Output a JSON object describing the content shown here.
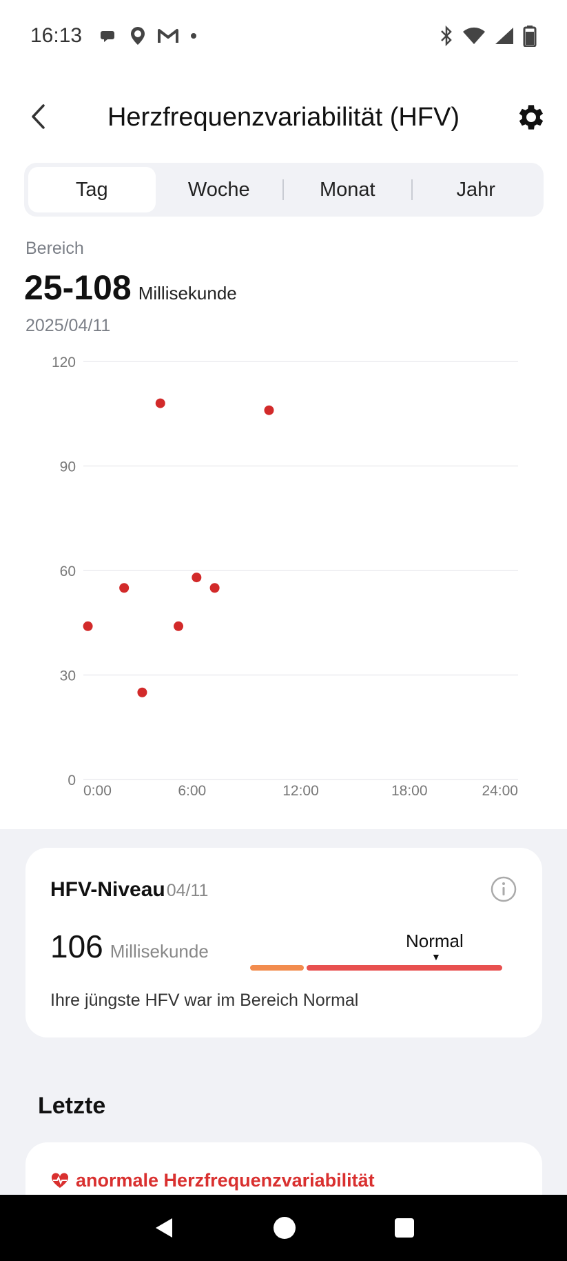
{
  "status_bar": {
    "time": "16:13"
  },
  "header": {
    "title": "Herzfrequenzvariabilität (HFV)"
  },
  "tabs": [
    {
      "label": "Tag",
      "active": true
    },
    {
      "label": "Woche",
      "active": false
    },
    {
      "label": "Monat",
      "active": false
    },
    {
      "label": "Jahr",
      "active": false
    }
  ],
  "summary": {
    "range_label": "Bereich",
    "range_value": "25-108",
    "range_unit": "Millisekunde",
    "date": "2025/04/11"
  },
  "chart_data": {
    "type": "scatter",
    "xlim": [
      0,
      24
    ],
    "ylim": [
      0,
      120
    ],
    "y_ticks": [
      0,
      30,
      60,
      90,
      120
    ],
    "y_tick_labels": [
      "0",
      "30",
      "60",
      "90",
      "120"
    ],
    "x_ticks": [
      0,
      6,
      12,
      18,
      24
    ],
    "x_tick_labels": [
      "0:00",
      "6:00",
      "12:00",
      "18:00",
      "24:00"
    ],
    "grid": true,
    "color": "#d22a2a",
    "points": [
      {
        "x": 0.25,
        "y": 44
      },
      {
        "x": 2.25,
        "y": 55
      },
      {
        "x": 3.25,
        "y": 25
      },
      {
        "x": 4.25,
        "y": 108
      },
      {
        "x": 5.25,
        "y": 44
      },
      {
        "x": 6.25,
        "y": 58
      },
      {
        "x": 7.25,
        "y": 55
      },
      {
        "x": 10.25,
        "y": 106
      }
    ]
  },
  "hfv_card": {
    "title": "HFV-Niveau",
    "date": "04/11",
    "value": "106",
    "unit": "Millisekunde",
    "level": "Normal",
    "description": "Ihre jüngste HFV war im Bereich Normal",
    "colors": {
      "low": "#f28c4e",
      "normal": "#e8504f"
    }
  },
  "recent": {
    "section_title": "Letzte",
    "item_label": "anormale Herzfrequenzvariabilität",
    "accent": "#d9302f"
  }
}
